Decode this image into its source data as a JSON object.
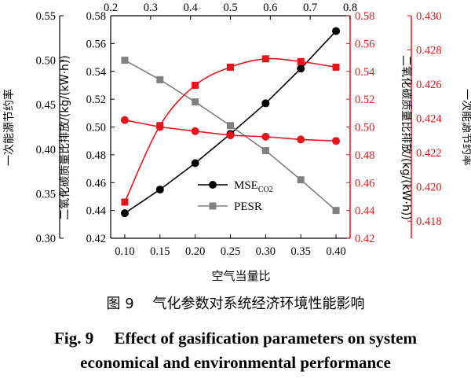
{
  "chart_data": {
    "type": "line",
    "xlabel": "空气当量比",
    "x_ticks": [
      "0.10",
      "0.15",
      "0.20",
      "0.25",
      "0.30",
      "0.35",
      "0.40"
    ],
    "xlim": [
      0.08,
      0.42
    ],
    "x2_ticks": [
      "0.2",
      "0.3",
      "0.4",
      "0.5",
      "0.6",
      "0.7",
      "0.8"
    ],
    "x2lim": [
      0.2,
      0.8
    ],
    "left_axis": {
      "label": "一次能源节约率",
      "ticks": [
        "0.30",
        "0.35",
        "0.40",
        "0.45",
        "0.50",
        "0.55"
      ],
      "ylim": [
        0.3,
        0.55
      ]
    },
    "inner_left_axis": {
      "label": "二氧化碳质量比排放/(kg/(kW·h))",
      "ticks": [
        "0.42",
        "0.44",
        "0.46",
        "0.48",
        "0.50",
        "0.52",
        "0.54",
        "0.56",
        "0.58"
      ],
      "ylim": [
        0.42,
        0.58
      ]
    },
    "inner_right_axis": {
      "label": "二氧化碳质量比排放/(kg/(kW·h))",
      "ticks": [
        "0.42",
        "0.44",
        "0.46",
        "0.48",
        "0.50",
        "0.52",
        "0.54",
        "0.56",
        "0.58"
      ],
      "ylim": [
        0.42,
        0.58
      ],
      "color": "#e8141b"
    },
    "right_axis": {
      "label": "一次能源节约率",
      "ticks": [
        "0.418",
        "0.420",
        "0.422",
        "0.424",
        "0.426",
        "0.428",
        "0.430"
      ],
      "ylim": [
        0.417,
        0.43
      ],
      "color": "#e8141b"
    },
    "series": [
      {
        "legend_main": "MSE",
        "legend_sub": "CO2",
        "axis": "inner_left",
        "marker": "circle",
        "color": "#000000",
        "x": [
          0.1,
          0.15,
          0.2,
          0.25,
          0.3,
          0.35,
          0.4
        ],
        "y": [
          0.438,
          0.455,
          0.474,
          0.495,
          0.517,
          0.542,
          0.569
        ]
      },
      {
        "legend_main": "PESR",
        "axis": "inner_left",
        "marker": "square",
        "color": "#808080",
        "x": [
          0.1,
          0.15,
          0.2,
          0.25,
          0.3,
          0.35,
          0.4
        ],
        "y": [
          0.548,
          0.534,
          0.518,
          0.501,
          0.483,
          0.462,
          0.44
        ]
      },
      {
        "axis": "inner_right",
        "marker": "square",
        "color": "#e8141b",
        "smooth": true,
        "x": [
          0.1,
          0.15,
          0.2,
          0.25,
          0.3,
          0.35,
          0.4
        ],
        "y": [
          0.446,
          0.501,
          0.53,
          0.543,
          0.549,
          0.547,
          0.543
        ]
      },
      {
        "axis": "inner_right",
        "marker": "circle",
        "color": "#e8141b",
        "x": [
          0.1,
          0.15,
          0.2,
          0.25,
          0.3,
          0.35,
          0.4
        ],
        "y": [
          0.505,
          0.5,
          0.497,
          0.494,
          0.493,
          0.491,
          0.49
        ]
      }
    ]
  },
  "caption": {
    "cn": "图 9　 气化参数对系统经济环境性能影响",
    "en_line1": "Fig. 9　 Effect of gasification parameters on system",
    "en_line2": "economical and environmental performance"
  }
}
